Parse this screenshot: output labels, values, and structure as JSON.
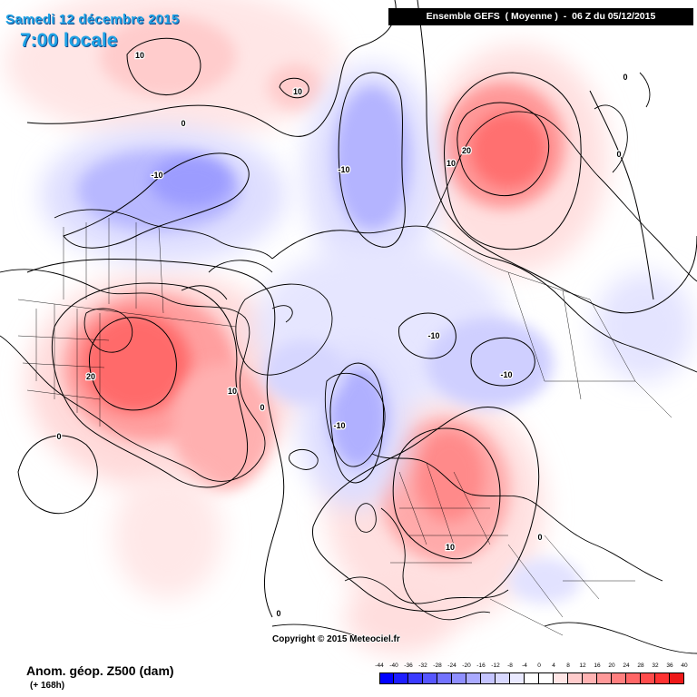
{
  "header": {
    "date": "Samedi 12 décembre 2015",
    "time": "7:00 locale",
    "model_run": "Ensemble GEFS  ( Moyenne )  -  06 Z du 05/12/2015"
  },
  "footer": {
    "variable": "Anom. géop. Z500 (dam)",
    "lead_time": "(+ 168h)",
    "copyright": "Copyright © 2015 Meteociel.fr"
  },
  "legend": {
    "ticks": [
      "-44",
      "-40",
      "-36",
      "-32",
      "-28",
      "-24",
      "-20",
      "-16",
      "-12",
      "-8",
      "-4",
      "0",
      "4",
      "8",
      "12",
      "16",
      "20",
      "24",
      "28",
      "32",
      "36",
      "40"
    ],
    "colors": [
      "#0000ff",
      "#1d1dff",
      "#3a3aff",
      "#5656ff",
      "#7373ff",
      "#8f8fff",
      "#aaaaff",
      "#c4c4ff",
      "#d8d8ff",
      "#e9e9ff",
      "#ffffff",
      "#ffffff",
      "#ffe6e6",
      "#ffcccc",
      "#ffb3b3",
      "#ff9999",
      "#ff7f7f",
      "#ff6666",
      "#ff4c4c",
      "#ff3333",
      "#ee1818"
    ]
  },
  "contour_labels": [
    {
      "id": "pos-pacific-north",
      "text": "10"
    },
    {
      "id": "pos-small-cell",
      "text": "10"
    },
    {
      "id": "zero-bering",
      "text": "0"
    },
    {
      "id": "neg-alaska",
      "text": "-10"
    },
    {
      "id": "neg-siberia-north",
      "text": "-10"
    },
    {
      "id": "pos-east-asia-20",
      "text": "20"
    },
    {
      "id": "pos-east-asia-10",
      "text": "10"
    },
    {
      "id": "pos-japan-0",
      "text": "0"
    },
    {
      "id": "zero-east-asia-top",
      "text": "0"
    },
    {
      "id": "pos-canada-20",
      "text": "20"
    },
    {
      "id": "pos-atlantic-10",
      "text": "10"
    },
    {
      "id": "zero-greenland",
      "text": "0"
    },
    {
      "id": "zero-pacific-west",
      "text": "0"
    },
    {
      "id": "neg-kara",
      "text": "-10"
    },
    {
      "id": "neg-siberia-east",
      "text": "-10"
    },
    {
      "id": "neg-scandinavia",
      "text": "-10"
    },
    {
      "id": "pos-europe",
      "text": "10"
    },
    {
      "id": "zero-europe-east",
      "text": "0"
    },
    {
      "id": "zero-atlantic-south",
      "text": "0"
    }
  ]
}
